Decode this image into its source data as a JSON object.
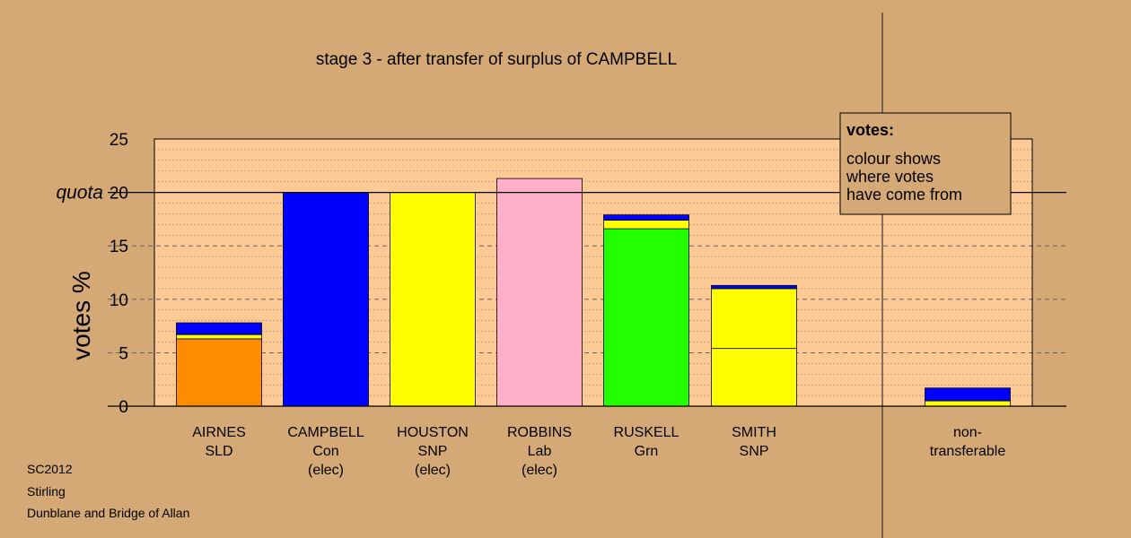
{
  "chart_data": {
    "type": "bar",
    "stacked": true,
    "title": "stage 3 - after transfer of surplus of CAMPBELL",
    "ylabel": "votes %",
    "ylim": [
      0,
      25
    ],
    "yticks": [
      "0",
      "5",
      "10",
      "15",
      "20",
      "25"
    ],
    "quota": 20,
    "quota_label": "quota",
    "grid": true,
    "categories": [
      {
        "lines": [
          "AIRNES",
          "SLD"
        ]
      },
      {
        "lines": [
          "CAMPBELL",
          "Con",
          "(elec)"
        ]
      },
      {
        "lines": [
          "HOUSTON",
          "SNP",
          "(elec)"
        ]
      },
      {
        "lines": [
          "ROBBINS",
          "Lab",
          "(elec)"
        ]
      },
      {
        "lines": [
          "RUSKELL",
          "Grn"
        ]
      },
      {
        "lines": [
          "SMITH",
          "SNP"
        ]
      },
      {
        "lines": [
          "non-",
          "transferable"
        ]
      }
    ],
    "stacks": [
      [
        {
          "value": 6.3,
          "color": "#ff8c00"
        },
        {
          "value": 0.4,
          "color": "#ffff00"
        },
        {
          "value": 1.1,
          "color": "#0000ff"
        }
      ],
      [
        {
          "value": 20.0,
          "color": "#0000ff"
        }
      ],
      [
        {
          "value": 20.0,
          "color": "#ffff00"
        }
      ],
      [
        {
          "value": 21.3,
          "color": "#ffb0c8"
        }
      ],
      [
        {
          "value": 16.6,
          "color": "#22ff00"
        },
        {
          "value": 0.8,
          "color": "#ffff00"
        },
        {
          "value": 0.5,
          "color": "#0000ff"
        }
      ],
      [
        {
          "value": 5.4,
          "color": "#ffff00"
        },
        {
          "value": 5.6,
          "color": "#ffff00"
        },
        {
          "value": 0.3,
          "color": "#0000ff"
        }
      ],
      [
        {
          "value": 0.5,
          "color": "#ffff00"
        },
        {
          "value": 1.2,
          "color": "#0000ff"
        }
      ]
    ]
  },
  "legend": {
    "title": "votes:",
    "lines": [
      "colour shows",
      "where votes",
      "have come from"
    ]
  },
  "footer": {
    "lines": [
      "SC2012",
      "Stirling",
      "Dunblane and Bridge of Allan"
    ]
  },
  "colors": {
    "background": "#d4a976",
    "plot_area": "#fdc994"
  }
}
